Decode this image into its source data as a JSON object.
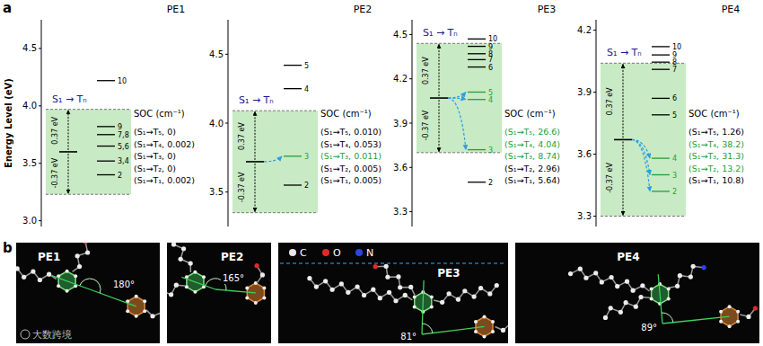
{
  "panel_letters": [
    "a",
    "b"
  ],
  "chart_data": [
    {
      "type": "energy_level",
      "title": "PE1",
      "y_label": "Energy Level (eV)",
      "ylim": [
        2.95,
        4.75
      ],
      "yticks": [
        {
          "value": 3,
          "label": "3.0"
        },
        3.5,
        {
          "value": 4,
          "label": "4.0"
        },
        4.5
      ],
      "transition_label": "S₁ → Tₙ",
      "s1": 3.6,
      "window": [
        -0.37,
        0.37
      ],
      "window_labels": [
        "-0.37 eV",
        "0.37 eV"
      ],
      "levels": [
        {
          "label": "10",
          "energy": 4.22,
          "color": "#000000"
        },
        {
          "label": "9",
          "energy": 3.82,
          "color": "#000000"
        },
        {
          "label": "7,8",
          "energy": 3.75,
          "color": "#000000"
        },
        {
          "label": "5,6",
          "energy": 3.65,
          "color": "#000000"
        },
        {
          "label": "3,4",
          "energy": 3.52,
          "color": "#000000"
        },
        {
          "label": "2",
          "energy": 3.4,
          "color": "#000000"
        }
      ],
      "soc": {
        "title": "SOC (cm⁻¹)",
        "entries": [
          {
            "text": "(S₁→T₅, 0)",
            "color": "#000000"
          },
          {
            "text": "(S₁→T₄, 0.002)",
            "color": "#000000"
          },
          {
            "text": "(S₁→T₃, 0)",
            "color": "#000000"
          },
          {
            "text": "(S₁→T₂, 0)",
            "color": "#000000"
          },
          {
            "text": "(S₁→T₁, 0.002)",
            "color": "#000000"
          }
        ]
      }
    },
    {
      "type": "energy_level",
      "title": "PE2",
      "ylim": [
        3.25,
        4.75
      ],
      "yticks": [
        3.5,
        {
          "value": 4,
          "label": "4.0"
        },
        4.5
      ],
      "transition_label": "S₁ → Tₙ",
      "s1": 3.72,
      "window": [
        -0.37,
        0.37
      ],
      "window_labels": [
        "-0.37 eV",
        "0.37 eV"
      ],
      "levels": [
        {
          "label": "5",
          "energy": 4.42,
          "color": "#000000"
        },
        {
          "label": "4",
          "energy": 4.25,
          "color": "#000000"
        },
        {
          "label": "3",
          "energy": 3.76,
          "color": "#23a035"
        },
        {
          "label": "2",
          "energy": 3.55,
          "color": "#000000"
        }
      ],
      "transfer": [
        "3"
      ],
      "soc": {
        "title": "SOC (cm⁻¹)",
        "entries": [
          {
            "text": "(S₁→T₅, 0.010)",
            "color": "#000000"
          },
          {
            "text": "(S₁→T₄, 0.053)",
            "color": "#000000"
          },
          {
            "text": "(S₁→T₃, 0.011)",
            "color": "#23a035"
          },
          {
            "text": "(S₁→T₂, 0.005)",
            "color": "#000000"
          },
          {
            "text": "(S₁→T₁, 0.005)",
            "color": "#000000"
          }
        ]
      }
    },
    {
      "type": "energy_level",
      "title": "PE3",
      "ylim": [
        3.2,
        4.6
      ],
      "yticks": [
        3.3,
        3.6,
        3.9,
        4.2,
        4.5
      ],
      "transition_label": "S₁ → Tₙ",
      "s1": 4.07,
      "window": [
        -0.37,
        0.37
      ],
      "window_labels": [
        "-0.37 eV",
        "0.37 eV"
      ],
      "levels": [
        {
          "label": "10",
          "energy": 4.47,
          "color": "#000000"
        },
        {
          "label": "9",
          "energy": 4.42,
          "color": "#000000"
        },
        {
          "label": "8",
          "energy": 4.37,
          "color": "#000000"
        },
        {
          "label": "7",
          "energy": 4.33,
          "color": "#000000"
        },
        {
          "label": "6",
          "energy": 4.28,
          "color": "#000000"
        },
        {
          "label": "5",
          "energy": 4.11,
          "color": "#23a035"
        },
        {
          "label": "4",
          "energy": 4.06,
          "color": "#23a035"
        },
        {
          "label": "3",
          "energy": 3.72,
          "color": "#23a035"
        },
        {
          "label": "2",
          "energy": 3.5,
          "color": "#000000"
        }
      ],
      "transfer": [
        "5",
        "4",
        "3"
      ],
      "soc": {
        "title": "SOC (cm⁻¹)",
        "entries": [
          {
            "text": "(S₁→T₅, 26.6)",
            "color": "#23a035"
          },
          {
            "text": "(S₁→T₄, 4.04)",
            "color": "#23a035"
          },
          {
            "text": "(S₁→T₃, 8.74)",
            "color": "#23a035"
          },
          {
            "text": "(S₁→T₂, 2.96)",
            "color": "#000000"
          },
          {
            "text": "(S₁→T₁, 5.64)",
            "color": "#000000"
          }
        ]
      }
    },
    {
      "type": "energy_level",
      "title": "PE4",
      "ylim": [
        3.25,
        4.25
      ],
      "yticks": [
        3.3,
        3.6,
        3.9,
        4.2
      ],
      "transition_label": "S₁ → Tₙ",
      "s1": 3.67,
      "window": [
        -0.37,
        0.37
      ],
      "window_labels": [
        "-0.37 eV",
        "0.37 eV"
      ],
      "levels": [
        {
          "label": "10",
          "energy": 4.12,
          "color": "#000000"
        },
        {
          "label": "9",
          "energy": 4.08,
          "color": "#000000"
        },
        {
          "label": "8",
          "energy": 4.045,
          "color": "#000000"
        },
        {
          "label": "7",
          "energy": 4.01,
          "color": "#000000"
        },
        {
          "label": "6",
          "energy": 3.87,
          "color": "#000000"
        },
        {
          "label": "5",
          "energy": 3.79,
          "color": "#000000"
        },
        {
          "label": "4",
          "energy": 3.58,
          "color": "#23a035"
        },
        {
          "label": "3",
          "energy": 3.5,
          "color": "#23a035"
        },
        {
          "label": "2",
          "energy": 3.42,
          "color": "#23a035"
        }
      ],
      "transfer": [
        "4",
        "3",
        "2"
      ],
      "soc": {
        "title": "SOC (cm⁻¹)",
        "entries": [
          {
            "text": "(S₁→T₅, 1.26)",
            "color": "#000000"
          },
          {
            "text": "(S₁→T₄, 38.2)",
            "color": "#23a035"
          },
          {
            "text": "(S₁→T₃, 31.3)",
            "color": "#23a035"
          },
          {
            "text": "(S₁→T₂, 13.2)",
            "color": "#23a035"
          },
          {
            "text": "(S₁→T₁, 10.8)",
            "color": "#000000"
          }
        ]
      }
    }
  ],
  "structures": [
    {
      "name": "PE1",
      "angle": 180,
      "angle_label": "180°"
    },
    {
      "name": "PE2",
      "angle": 165,
      "angle_label": "165°"
    },
    {
      "name": "PE3",
      "angle": 81,
      "angle_label": "81°"
    },
    {
      "name": "PE4",
      "angle": 89,
      "angle_label": "89°"
    }
  ],
  "atom_legend": [
    {
      "symbol": "C",
      "color": "#e8e8e8"
    },
    {
      "symbol": "O",
      "color": "#e02a2a"
    },
    {
      "symbol": "N",
      "color": "#2a45e0"
    }
  ],
  "watermark": "大数跨境"
}
